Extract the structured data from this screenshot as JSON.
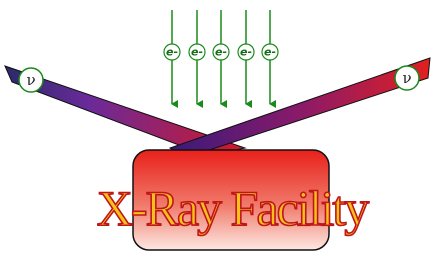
{
  "electrons": [
    {
      "label": "e-"
    },
    {
      "label": "e-"
    },
    {
      "label": "e-"
    },
    {
      "label": "e-"
    },
    {
      "label": "e-"
    }
  ],
  "neutrinos": [
    {
      "label": "ν"
    },
    {
      "label": "ν"
    }
  ],
  "title": "X-Ray Facility"
}
